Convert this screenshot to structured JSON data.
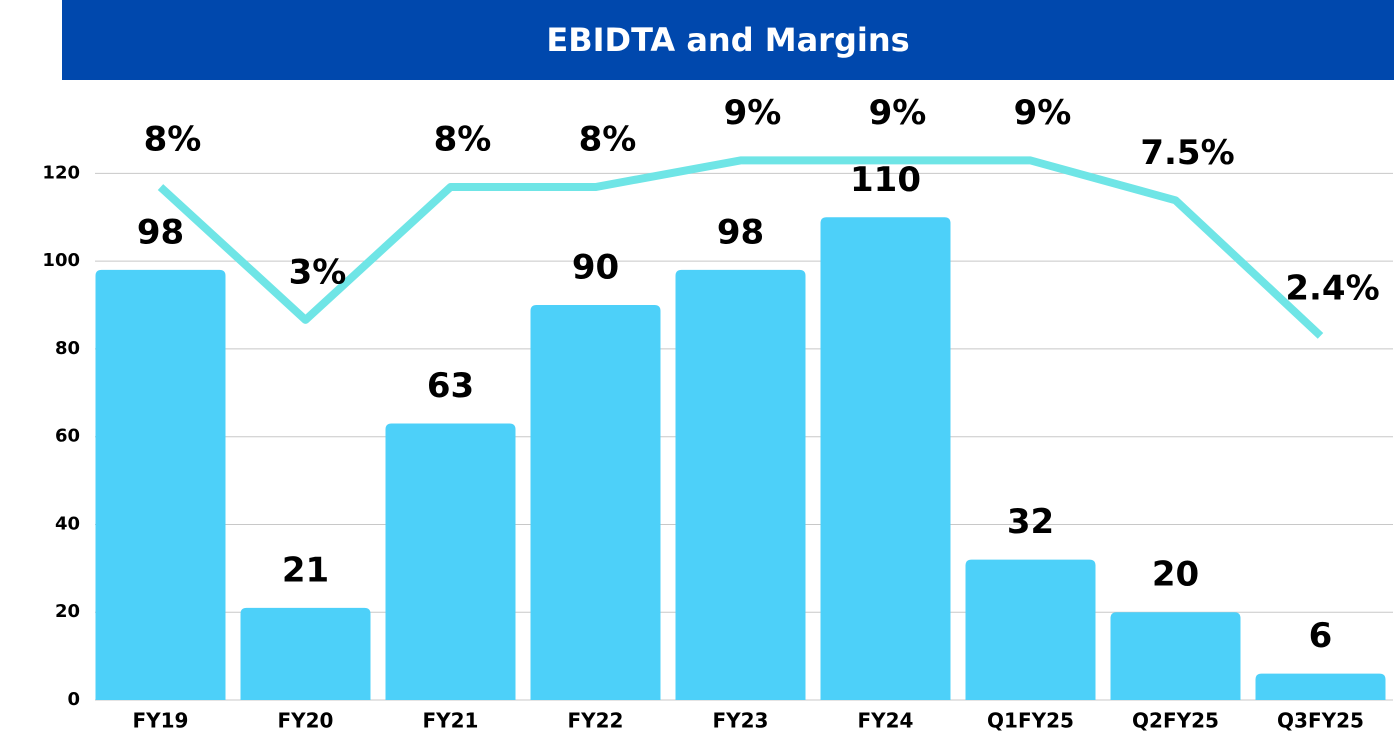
{
  "chart_data": {
    "type": "bar",
    "title": "EBIDTA and Margins",
    "categories": [
      "FY19",
      "FY20",
      "FY21",
      "FY22",
      "FY23",
      "FY24",
      "Q1FY25",
      "Q2FY25",
      "Q3FY25"
    ],
    "series": [
      {
        "name": "EBIDTA",
        "color": "#4dd0f9",
        "values": [
          98,
          21,
          63,
          90,
          98,
          110,
          32,
          20,
          6
        ]
      },
      {
        "name": "Margin",
        "color": "#6fe5e6",
        "axis": "y2",
        "values": [
          8,
          3,
          8,
          8,
          9,
          9,
          9,
          7.5,
          2.4
        ],
        "value_labels": [
          "8%",
          "3%",
          "8%",
          "8%",
          "9%",
          "9%",
          "9%",
          "7.5%",
          "2.4%"
        ]
      }
    ],
    "ylim": [
      0,
      139
    ],
    "yticks": [
      0,
      20,
      40,
      60,
      80,
      100,
      120
    ],
    "y2lim": [
      -11.3,
      11.65
    ],
    "grid": true
  }
}
